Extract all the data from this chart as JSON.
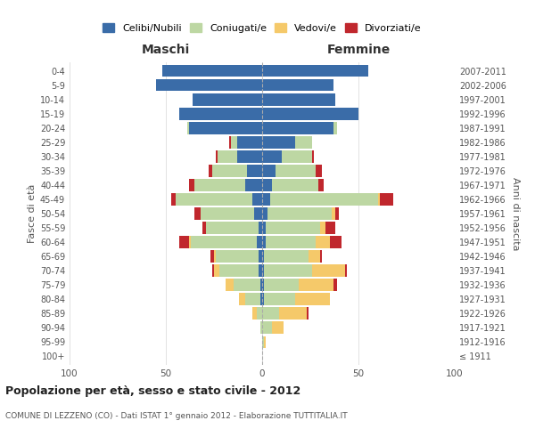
{
  "age_groups": [
    "100+",
    "95-99",
    "90-94",
    "85-89",
    "80-84",
    "75-79",
    "70-74",
    "65-69",
    "60-64",
    "55-59",
    "50-54",
    "45-49",
    "40-44",
    "35-39",
    "30-34",
    "25-29",
    "20-24",
    "15-19",
    "10-14",
    "5-9",
    "0-4"
  ],
  "birth_years": [
    "≤ 1911",
    "1912-1916",
    "1917-1921",
    "1922-1926",
    "1927-1931",
    "1932-1936",
    "1937-1941",
    "1942-1946",
    "1947-1951",
    "1952-1956",
    "1957-1961",
    "1962-1966",
    "1967-1971",
    "1972-1976",
    "1977-1981",
    "1982-1986",
    "1987-1991",
    "1992-1996",
    "1997-2001",
    "2002-2006",
    "2007-2011"
  ],
  "colors": {
    "celibi": "#3a6ca8",
    "coniugati": "#bdd7a3",
    "vedovi": "#f5c96a",
    "divorziati": "#c0272d"
  },
  "maschi": {
    "celibi": [
      0,
      0,
      0,
      0,
      1,
      1,
      2,
      2,
      3,
      2,
      4,
      5,
      9,
      8,
      13,
      13,
      38,
      43,
      36,
      55,
      52
    ],
    "coniugati": [
      0,
      0,
      1,
      3,
      8,
      14,
      20,
      22,
      34,
      27,
      28,
      40,
      26,
      18,
      10,
      3,
      1,
      0,
      0,
      0,
      0
    ],
    "vedovi": [
      0,
      0,
      0,
      2,
      3,
      4,
      3,
      1,
      1,
      0,
      0,
      0,
      0,
      0,
      0,
      0,
      0,
      0,
      0,
      0,
      0
    ],
    "divorziati": [
      0,
      0,
      0,
      0,
      0,
      0,
      1,
      2,
      5,
      2,
      3,
      2,
      3,
      2,
      1,
      1,
      0,
      0,
      0,
      0,
      0
    ]
  },
  "femmine": {
    "celibi": [
      0,
      0,
      0,
      0,
      1,
      1,
      1,
      1,
      2,
      2,
      3,
      4,
      5,
      7,
      10,
      17,
      37,
      50,
      38,
      37,
      55
    ],
    "coniugati": [
      0,
      1,
      5,
      9,
      16,
      18,
      25,
      23,
      26,
      28,
      33,
      56,
      24,
      21,
      16,
      9,
      2,
      0,
      0,
      0,
      0
    ],
    "vedovi": [
      0,
      1,
      6,
      14,
      18,
      18,
      17,
      6,
      7,
      3,
      2,
      1,
      0,
      0,
      0,
      0,
      0,
      0,
      0,
      0,
      0
    ],
    "divorziati": [
      0,
      0,
      0,
      1,
      0,
      2,
      1,
      1,
      6,
      5,
      2,
      7,
      3,
      3,
      1,
      0,
      0,
      0,
      0,
      0,
      0
    ]
  },
  "title": "Popolazione per età, sesso e stato civile - 2012",
  "subtitle": "COMUNE DI LEZZENO (CO) - Dati ISTAT 1° gennaio 2012 - Elaborazione TUTTITALIA.IT",
  "xlabel_left": "Maschi",
  "xlabel_right": "Femmine",
  "ylabel_left": "Fasce di età",
  "ylabel_right": "Anni di nascita",
  "legend_labels": [
    "Celibi/Nubili",
    "Coniugati/e",
    "Vedovi/e",
    "Divorziati/e"
  ],
  "xlim": 100,
  "background_color": "#ffffff",
  "bar_height": 0.85
}
